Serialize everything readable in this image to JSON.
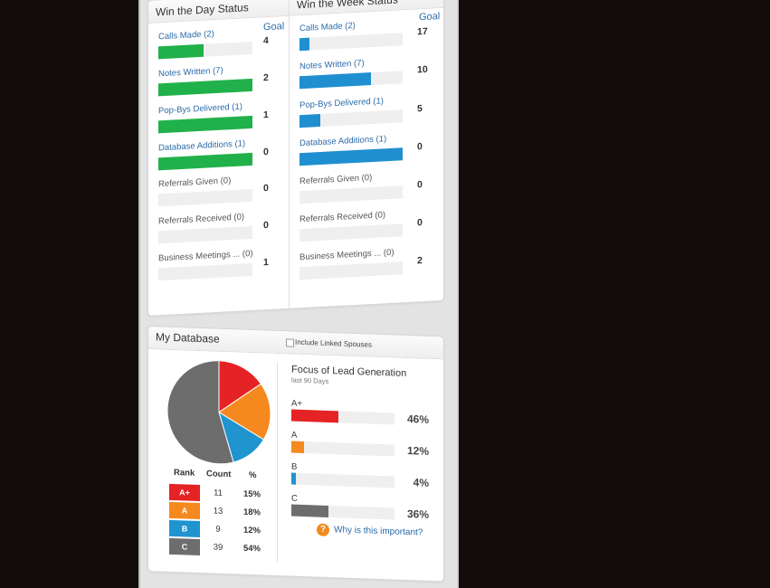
{
  "colors": {
    "day_bar": "#21b14b",
    "week_bar": "#1f8fd0",
    "rank_a_plus": "#e52224",
    "rank_a": "#f5891f",
    "rank_b": "#1f94cf",
    "rank_c": "#6d6d6d"
  },
  "day_status": {
    "title": "Win the Day Status",
    "goal_header": "Goal",
    "items": [
      {
        "label": "Calls Made (2)",
        "progress": 0.48,
        "goal": "4",
        "done": true
      },
      {
        "label": "Notes Written (7)",
        "progress": 1.0,
        "goal": "2",
        "done": true
      },
      {
        "label": "Pop-Bys Delivered (1)",
        "progress": 1.0,
        "goal": "1",
        "done": true
      },
      {
        "label": "Database Additions (1)",
        "progress": 1.0,
        "goal": "0",
        "done": true
      },
      {
        "label": "Referrals Given (0)",
        "progress": 0,
        "goal": "0",
        "done": false
      },
      {
        "label": "Referrals Received (0)",
        "progress": 0,
        "goal": "0",
        "done": false
      },
      {
        "label": "Business Meetings ... (0)",
        "progress": 0,
        "goal": "1",
        "done": false
      }
    ]
  },
  "week_status": {
    "title": "Win the Week Status",
    "goal_header": "Goal",
    "items": [
      {
        "label": "Calls Made (2)",
        "progress": 0.1,
        "goal": "17",
        "done": true
      },
      {
        "label": "Notes Written (7)",
        "progress": 0.69,
        "goal": "10",
        "done": true
      },
      {
        "label": "Pop-Bys Delivered (1)",
        "progress": 0.2,
        "goal": "5",
        "done": true
      },
      {
        "label": "Database Additions (1)",
        "progress": 1.0,
        "goal": "0",
        "done": true
      },
      {
        "label": "Referrals Given (0)",
        "progress": 0,
        "goal": "0",
        "done": false
      },
      {
        "label": "Referrals Received (0)",
        "progress": 0,
        "goal": "0",
        "done": false
      },
      {
        "label": "Business Meetings ... (0)",
        "progress": 0,
        "goal": "2",
        "done": false
      }
    ]
  },
  "database": {
    "title": "My Database",
    "include_spouses_label": "Include Linked Spouses",
    "include_spouses_checked": false,
    "rank_header": "Rank",
    "count_header": "Count",
    "pct_header": "%",
    "ranks": [
      {
        "rank": "A+",
        "count": "11",
        "pct": "15%",
        "share": 15,
        "color": "#e52224"
      },
      {
        "rank": "A",
        "count": "13",
        "pct": "18%",
        "share": 18,
        "color": "#f5891f"
      },
      {
        "rank": "B",
        "count": "9",
        "pct": "12%",
        "share": 12,
        "color": "#1f94cf"
      },
      {
        "rank": "C",
        "count": "39",
        "pct": "54%",
        "share": 54,
        "color": "#6d6d6d"
      }
    ],
    "focus": {
      "title": "Focus of Lead Generation",
      "subtitle": "last 90 Days",
      "items": [
        {
          "label": "A+",
          "value": "46%",
          "fraction": 0.46,
          "color": "#e52224"
        },
        {
          "label": "A",
          "value": "12%",
          "fraction": 0.12,
          "color": "#f5891f"
        },
        {
          "label": "B",
          "value": "4%",
          "fraction": 0.04,
          "color": "#1f94cf"
        },
        {
          "label": "C",
          "value": "36%",
          "fraction": 0.36,
          "color": "#6d6d6d"
        }
      ],
      "why_label": "Why is this important?",
      "why_icon": "question-circle-icon"
    }
  }
}
